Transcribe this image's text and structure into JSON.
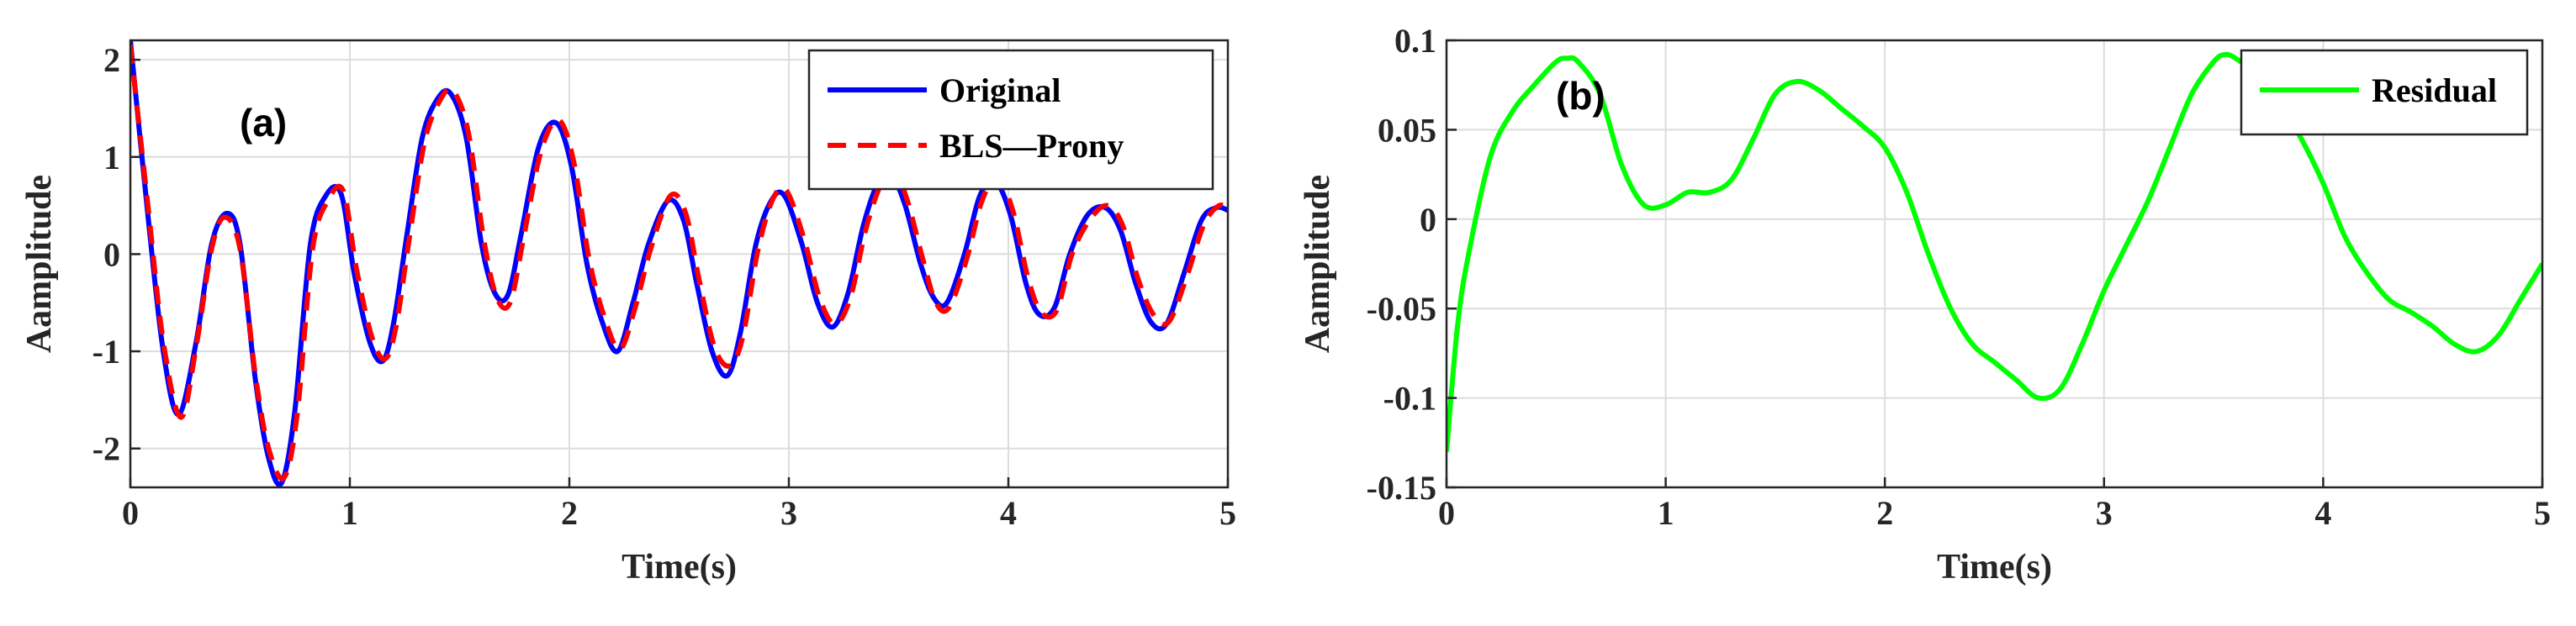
{
  "chart_data": [
    {
      "type": "line",
      "panel_label": "(a)",
      "xlabel": "Time(s)",
      "ylabel": "Aamplitude",
      "xlim": [
        0,
        5
      ],
      "ylim": [
        -2.4,
        2.2
      ],
      "xticks": [
        "0",
        "1",
        "2",
        "3",
        "4",
        "5"
      ],
      "yticks": [
        "-2",
        "-1",
        "0",
        "1",
        "2"
      ],
      "grid": true,
      "legend_position": "top-right",
      "series": [
        {
          "name": "Original",
          "color": "#0000ff",
          "style": "solid",
          "x": [
            0,
            0.08,
            0.15,
            0.22,
            0.3,
            0.37,
            0.44,
            0.5,
            0.57,
            0.63,
            0.69,
            0.75,
            0.82,
            0.89,
            0.96,
            1.02,
            1.09,
            1.15,
            1.2,
            1.26,
            1.33,
            1.4,
            1.46,
            1.53,
            1.6,
            1.66,
            1.72,
            1.78,
            1.86,
            1.94,
            2.01,
            2.08,
            2.15,
            2.22,
            2.29,
            2.36,
            2.45,
            2.52,
            2.58,
            2.65,
            2.72,
            2.78,
            2.85,
            2.92,
            2.98,
            3.06,
            3.13,
            3.2,
            3.27,
            3.34,
            3.41,
            3.47,
            3.53,
            3.6,
            3.66,
            3.72,
            3.8,
            3.87,
            3.94,
            4.01,
            4.08,
            4.14,
            4.21,
            4.28,
            4.36,
            4.44,
            4.51,
            4.58,
            4.65,
            4.72,
            4.8,
            4.88,
            4.95,
            5.0
          ],
          "values": [
            2.2,
            0.4,
            -1.0,
            -1.65,
            -0.9,
            0.1,
            0.42,
            0.1,
            -1.3,
            -2.1,
            -2.35,
            -1.6,
            0.1,
            0.6,
            0.62,
            -0.2,
            -0.9,
            -1.1,
            -0.7,
            0.2,
            1.2,
            1.6,
            1.65,
            1.2,
            0.1,
            -0.4,
            -0.42,
            0.2,
            1.1,
            1.35,
            0.9,
            -0.1,
            -0.7,
            -1.0,
            -0.5,
            0.1,
            0.55,
            0.35,
            -0.3,
            -1.0,
            -1.25,
            -0.8,
            0.1,
            0.55,
            0.6,
            0.1,
            -0.5,
            -0.75,
            -0.4,
            0.3,
            0.75,
            0.8,
            0.5,
            -0.1,
            -0.45,
            -0.5,
            0.0,
            0.6,
            0.75,
            0.4,
            -0.3,
            -0.62,
            -0.55,
            0.0,
            0.4,
            0.48,
            0.25,
            -0.3,
            -0.7,
            -0.72,
            -0.2,
            0.35,
            0.48,
            0.45
          ]
        },
        {
          "name": "BLS—Prony",
          "color": "#ff0000",
          "style": "dashed",
          "x": [
            0,
            0.08,
            0.15,
            0.23,
            0.3,
            0.37,
            0.43,
            0.5,
            0.57,
            0.63,
            0.7,
            0.76,
            0.83,
            0.9,
            0.97,
            1.03,
            1.1,
            1.16,
            1.21,
            1.27,
            1.34,
            1.41,
            1.47,
            1.54,
            1.61,
            1.67,
            1.73,
            1.79,
            1.87,
            1.95,
            2.02,
            2.09,
            2.16,
            2.23,
            2.3,
            2.37,
            2.46,
            2.53,
            2.59,
            2.66,
            2.73,
            2.79,
            2.86,
            2.93,
            2.99,
            3.07,
            3.14,
            3.21,
            3.28,
            3.35,
            3.42,
            3.48,
            3.54,
            3.61,
            3.67,
            3.73,
            3.81,
            3.88,
            3.95,
            4.02,
            4.09,
            4.15,
            4.22,
            4.29,
            4.37,
            4.45,
            4.52,
            4.59,
            4.66,
            4.73,
            4.81,
            4.89,
            4.96,
            5.0
          ],
          "values": [
            2.15,
            0.5,
            -0.9,
            -1.68,
            -0.95,
            0.05,
            0.38,
            0.05,
            -1.25,
            -2.0,
            -2.3,
            -1.65,
            0.05,
            0.55,
            0.65,
            -0.15,
            -0.85,
            -1.08,
            -0.75,
            0.15,
            1.15,
            1.58,
            1.68,
            1.25,
            0.15,
            -0.45,
            -0.5,
            0.15,
            1.05,
            1.38,
            0.95,
            -0.05,
            -0.65,
            -0.98,
            -0.55,
            0.05,
            0.6,
            0.42,
            -0.25,
            -0.95,
            -1.15,
            -0.85,
            0.05,
            0.58,
            0.65,
            0.15,
            -0.45,
            -0.72,
            -0.45,
            0.25,
            0.72,
            0.85,
            0.55,
            -0.05,
            -0.5,
            -0.55,
            -0.05,
            0.55,
            0.78,
            0.45,
            -0.25,
            -0.6,
            -0.58,
            0.0,
            0.35,
            0.5,
            0.3,
            -0.25,
            -0.62,
            -0.7,
            -0.25,
            0.3,
            0.5,
            0.45
          ]
        }
      ]
    },
    {
      "type": "line",
      "panel_label": "(b)",
      "xlabel": "Time(s)",
      "ylabel": "Aamplitude",
      "xlim": [
        0,
        5
      ],
      "ylim": [
        -0.15,
        0.1
      ],
      "xticks": [
        "0",
        "1",
        "2",
        "3",
        "4",
        "5"
      ],
      "yticks": [
        "-0.15",
        "-0.1",
        "-0.05",
        "0",
        "0.05",
        "0.1"
      ],
      "grid": true,
      "legend_position": "top-right",
      "series": [
        {
          "name": "Residual",
          "color": "#00ff00",
          "style": "solid",
          "x": [
            0,
            0.05,
            0.1,
            0.2,
            0.3,
            0.4,
            0.5,
            0.55,
            0.6,
            0.7,
            0.8,
            0.9,
            1.0,
            1.1,
            1.2,
            1.3,
            1.4,
            1.5,
            1.6,
            1.7,
            1.8,
            1.9,
            2.0,
            2.1,
            2.2,
            2.3,
            2.4,
            2.5,
            2.6,
            2.7,
            2.8,
            2.9,
            3.0,
            3.1,
            3.2,
            3.3,
            3.4,
            3.5,
            3.55,
            3.6,
            3.7,
            3.8,
            3.9,
            4.0,
            4.1,
            4.2,
            4.3,
            4.4,
            4.5,
            4.6,
            4.7,
            4.8,
            4.9,
            5.0
          ],
          "values": [
            -0.13,
            -0.06,
            -0.02,
            0.035,
            0.06,
            0.075,
            0.088,
            0.09,
            0.088,
            0.07,
            0.03,
            0.008,
            0.008,
            0.015,
            0.015,
            0.022,
            0.045,
            0.07,
            0.077,
            0.072,
            0.062,
            0.052,
            0.04,
            0.015,
            -0.02,
            -0.05,
            -0.07,
            -0.08,
            -0.09,
            -0.1,
            -0.095,
            -0.07,
            -0.04,
            -0.015,
            0.01,
            0.04,
            0.07,
            0.088,
            0.092,
            0.09,
            0.08,
            0.065,
            0.045,
            0.02,
            -0.01,
            -0.03,
            -0.045,
            -0.052,
            -0.06,
            -0.07,
            -0.074,
            -0.065,
            -0.045,
            -0.025
          ]
        }
      ]
    }
  ]
}
